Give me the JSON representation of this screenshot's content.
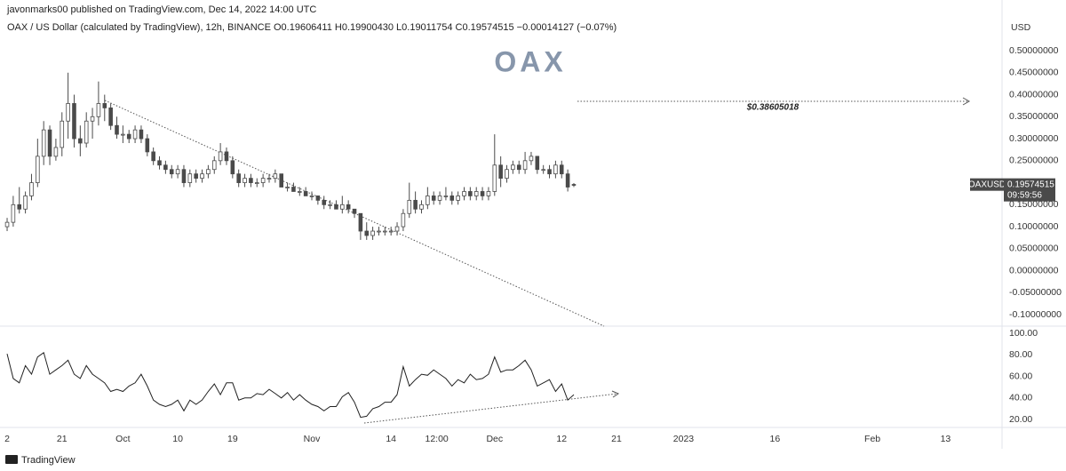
{
  "header": {
    "published": "javonmarks00 published on TradingView.com, Dec 14, 2022 14:00 UTC",
    "legend": "OAX / US Dollar (calculated by TradingView), 12h, BINANCE",
    "ohlc_text": [
      "O0.19606411",
      "H0.19900430",
      "L0.19011754",
      "C0.19574515",
      "−0.00014127 (−0.07%)"
    ],
    "watermark": "OAX"
  },
  "footer": "TradingView",
  "chart_data": [
    {
      "type": "candlestick",
      "y_label": "USD",
      "annotation": "$0.38605018",
      "symbol_tag": "OAXUSD",
      "countdown": "09:59:56",
      "colors": {
        "up": "#ffffff",
        "down": "#4a4a4a",
        "wick": "#4a4a4a",
        "tag": "#4a4a4a"
      },
      "grid": false,
      "xlim": [
        -1.17,
        163.27
      ],
      "ylim": [
        -0.122,
        0.595
      ],
      "yticks": [
        {
          "value": 0.5,
          "label": "0.50000000"
        },
        {
          "value": 0.45,
          "label": "0.45000000"
        },
        {
          "value": 0.4,
          "label": "0.40000000"
        },
        {
          "value": 0.35,
          "label": "0.35000000"
        },
        {
          "value": 0.3,
          "label": "0.30000000"
        },
        {
          "value": 0.25,
          "label": "0.25000000"
        },
        {
          "value": 0.15,
          "label": "0.15000000"
        },
        {
          "value": 0.1,
          "label": "0.10000000"
        },
        {
          "value": 0.05,
          "label": "0.05000000"
        },
        {
          "value": 0,
          "label": "0.00000000"
        },
        {
          "value": -0.05,
          "label": "-0.05000000"
        },
        {
          "value": -0.1,
          "label": "-0.10000000"
        }
      ],
      "x": [
        0,
        1,
        2,
        3,
        4,
        5,
        6,
        7,
        8,
        9,
        10,
        11,
        12,
        13,
        14,
        15,
        16,
        17,
        18,
        19,
        20,
        21,
        22,
        23,
        24,
        25,
        26,
        27,
        28,
        29,
        30,
        31,
        32,
        33,
        34,
        35,
        36,
        37,
        38,
        39,
        40,
        41,
        42,
        43,
        44,
        45,
        46,
        47,
        48,
        49,
        50,
        51,
        52,
        53,
        54,
        55,
        56,
        57,
        58,
        59,
        60,
        61,
        62,
        63,
        64,
        65,
        66,
        67,
        68,
        69,
        70,
        71,
        72,
        73,
        74,
        75,
        76,
        77,
        78,
        79,
        80,
        81,
        82,
        83,
        84,
        85,
        86,
        87,
        88,
        89,
        90,
        91,
        92,
        93
      ],
      "open": [
        0.1,
        0.11,
        0.15,
        0.14,
        0.17,
        0.2,
        0.26,
        0.32,
        0.26,
        0.28,
        0.34,
        0.38,
        0.3,
        0.29,
        0.34,
        0.35,
        0.38,
        0.37,
        0.33,
        0.31,
        0.31,
        0.3,
        0.32,
        0.3,
        0.27,
        0.25,
        0.24,
        0.23,
        0.22,
        0.23,
        0.2,
        0.22,
        0.21,
        0.22,
        0.23,
        0.25,
        0.27,
        0.25,
        0.22,
        0.2,
        0.21,
        0.2,
        0.2,
        0.21,
        0.21,
        0.22,
        0.19,
        0.19,
        0.18,
        0.18,
        0.17,
        0.17,
        0.16,
        0.15,
        0.15,
        0.14,
        0.15,
        0.14,
        0.13,
        0.09,
        0.08,
        0.09,
        0.09,
        0.09,
        0.09,
        0.1,
        0.13,
        0.16,
        0.14,
        0.15,
        0.17,
        0.16,
        0.17,
        0.17,
        0.16,
        0.17,
        0.18,
        0.17,
        0.18,
        0.17,
        0.18,
        0.24,
        0.21,
        0.23,
        0.24,
        0.23,
        0.25,
        0.26,
        0.23,
        0.23,
        0.22,
        0.24,
        0.22,
        0.19606411
      ],
      "high": [
        0.12,
        0.17,
        0.19,
        0.18,
        0.22,
        0.3,
        0.34,
        0.33,
        0.3,
        0.36,
        0.45,
        0.4,
        0.33,
        0.36,
        0.37,
        0.43,
        0.4,
        0.38,
        0.35,
        0.33,
        0.32,
        0.33,
        0.33,
        0.31,
        0.28,
        0.26,
        0.25,
        0.24,
        0.24,
        0.24,
        0.23,
        0.23,
        0.23,
        0.24,
        0.26,
        0.29,
        0.28,
        0.26,
        0.23,
        0.22,
        0.22,
        0.21,
        0.22,
        0.22,
        0.23,
        0.22,
        0.2,
        0.2,
        0.19,
        0.19,
        0.18,
        0.17,
        0.17,
        0.16,
        0.16,
        0.17,
        0.16,
        0.14,
        0.13,
        0.11,
        0.1,
        0.1,
        0.1,
        0.1,
        0.11,
        0.14,
        0.2,
        0.18,
        0.16,
        0.19,
        0.18,
        0.18,
        0.19,
        0.18,
        0.18,
        0.19,
        0.19,
        0.19,
        0.19,
        0.19,
        0.31,
        0.26,
        0.24,
        0.25,
        0.25,
        0.27,
        0.27,
        0.26,
        0.24,
        0.24,
        0.25,
        0.25,
        0.23,
        0.1990043
      ],
      "low": [
        0.09,
        0.1,
        0.13,
        0.13,
        0.16,
        0.19,
        0.24,
        0.24,
        0.25,
        0.26,
        0.3,
        0.28,
        0.26,
        0.28,
        0.3,
        0.33,
        0.34,
        0.32,
        0.3,
        0.29,
        0.29,
        0.29,
        0.29,
        0.26,
        0.24,
        0.23,
        0.22,
        0.21,
        0.21,
        0.19,
        0.19,
        0.2,
        0.2,
        0.21,
        0.22,
        0.24,
        0.24,
        0.21,
        0.19,
        0.19,
        0.19,
        0.19,
        0.19,
        0.2,
        0.2,
        0.19,
        0.18,
        0.18,
        0.17,
        0.17,
        0.16,
        0.15,
        0.14,
        0.14,
        0.14,
        0.13,
        0.13,
        0.12,
        0.07,
        0.07,
        0.07,
        0.08,
        0.08,
        0.08,
        0.08,
        0.09,
        0.12,
        0.13,
        0.13,
        0.14,
        0.15,
        0.15,
        0.16,
        0.15,
        0.15,
        0.16,
        0.16,
        0.16,
        0.16,
        0.16,
        0.17,
        0.19,
        0.2,
        0.22,
        0.22,
        0.22,
        0.24,
        0.22,
        0.22,
        0.21,
        0.21,
        0.21,
        0.18,
        0.19011754
      ],
      "close": [
        0.11,
        0.15,
        0.14,
        0.17,
        0.2,
        0.26,
        0.32,
        0.26,
        0.28,
        0.34,
        0.38,
        0.3,
        0.29,
        0.34,
        0.35,
        0.38,
        0.37,
        0.33,
        0.31,
        0.31,
        0.3,
        0.32,
        0.3,
        0.27,
        0.25,
        0.24,
        0.23,
        0.22,
        0.23,
        0.2,
        0.22,
        0.21,
        0.22,
        0.23,
        0.25,
        0.27,
        0.25,
        0.22,
        0.2,
        0.21,
        0.2,
        0.2,
        0.21,
        0.21,
        0.22,
        0.19,
        0.19,
        0.18,
        0.18,
        0.17,
        0.17,
        0.16,
        0.15,
        0.15,
        0.14,
        0.15,
        0.14,
        0.13,
        0.09,
        0.08,
        0.09,
        0.09,
        0.09,
        0.09,
        0.1,
        0.13,
        0.16,
        0.14,
        0.15,
        0.17,
        0.16,
        0.17,
        0.17,
        0.16,
        0.17,
        0.18,
        0.17,
        0.18,
        0.17,
        0.18,
        0.24,
        0.21,
        0.23,
        0.24,
        0.23,
        0.25,
        0.26,
        0.23,
        0.23,
        0.22,
        0.24,
        0.22,
        0.19,
        0.19574515
      ]
    },
    {
      "type": "line",
      "color": "#222222",
      "grid": false,
      "xlim": [
        -1.17,
        163.27
      ],
      "ylim": [
        13.4,
        105.8
      ],
      "yticks": [
        {
          "value": 100,
          "label": "100.00"
        },
        {
          "value": 80,
          "label": "80.00"
        },
        {
          "value": 60,
          "label": "60.00"
        },
        {
          "value": 40,
          "label": "40.00"
        },
        {
          "value": 20,
          "label": "20.00"
        }
      ],
      "xticks": [
        {
          "value": 0,
          "label": "2"
        },
        {
          "value": 9,
          "label": "21"
        },
        {
          "value": 19,
          "label": "Oct"
        },
        {
          "value": 28,
          "label": "10"
        },
        {
          "value": 37,
          "label": "19"
        },
        {
          "value": 50,
          "label": "Nov"
        },
        {
          "value": 63,
          "label": "14"
        },
        {
          "value": 70.5,
          "label": "12:00"
        },
        {
          "value": 80,
          "label": "Dec"
        },
        {
          "value": 91,
          "label": "12"
        },
        {
          "value": 100,
          "label": "21"
        },
        {
          "value": 111,
          "label": "2023"
        },
        {
          "value": 126,
          "label": "16"
        },
        {
          "value": 142,
          "label": "Feb"
        },
        {
          "value": 154,
          "label": "13"
        }
      ],
      "x": [
        0,
        1,
        2,
        3,
        4,
        5,
        6,
        7,
        8,
        9,
        10,
        11,
        12,
        13,
        14,
        15,
        16,
        17,
        18,
        19,
        20,
        21,
        22,
        23,
        24,
        25,
        26,
        27,
        28,
        29,
        30,
        31,
        32,
        33,
        34,
        35,
        36,
        37,
        38,
        39,
        40,
        41,
        42,
        43,
        44,
        45,
        46,
        47,
        48,
        49,
        50,
        51,
        52,
        53,
        54,
        55,
        56,
        57,
        58,
        59,
        60,
        61,
        62,
        63,
        64,
        65,
        66,
        67,
        68,
        69,
        70,
        71,
        72,
        73,
        74,
        75,
        76,
        77,
        78,
        79,
        80,
        81,
        82,
        83,
        84,
        85,
        86,
        87,
        88,
        89,
        90,
        91,
        92,
        93
      ],
      "values": [
        81,
        58,
        54,
        70,
        62,
        78,
        82,
        62,
        66,
        70,
        75,
        62,
        58,
        70,
        62,
        58,
        54,
        46,
        48,
        46,
        51,
        54,
        62,
        51,
        38,
        34,
        32,
        34,
        38,
        28,
        38,
        34,
        38,
        46,
        53,
        43,
        54,
        54,
        38,
        40,
        40,
        44,
        43,
        48,
        44,
        40,
        45,
        38,
        43,
        38,
        34,
        32,
        28,
        32,
        32,
        41,
        45,
        36,
        22,
        23,
        30,
        32,
        36,
        36,
        43,
        69,
        51,
        57,
        62,
        61,
        66,
        62,
        58,
        51,
        57,
        54,
        62,
        57,
        58,
        62,
        78,
        64,
        66,
        66,
        70,
        75,
        66,
        51,
        54,
        57,
        46,
        53,
        38,
        43
      ]
    }
  ]
}
